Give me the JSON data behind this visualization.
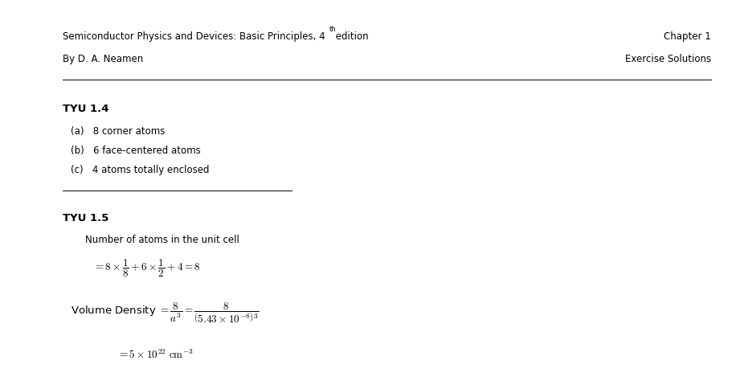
{
  "background_color": "#ffffff",
  "header_left_line1": "Semiconductor Physics and Devices: Basic Principles, 4",
  "header_left_super": "th",
  "header_left_line1_end": " edition",
  "header_left_line2": "By D. A. Neamen",
  "header_right_line1": "Chapter 1",
  "header_right_line2": "Exercise Solutions",
  "section1_title": "TYU 1.4",
  "section1_items": [
    "(a)   8 corner atoms",
    "(b)   6 face-centered atoms",
    "(c)   4 atoms totally enclosed"
  ],
  "section2_title": "TYU 1.5",
  "section2_sub": "Number of atoms in the unit cell",
  "figsize": [
    9.16,
    4.69
  ],
  "dpi": 100
}
